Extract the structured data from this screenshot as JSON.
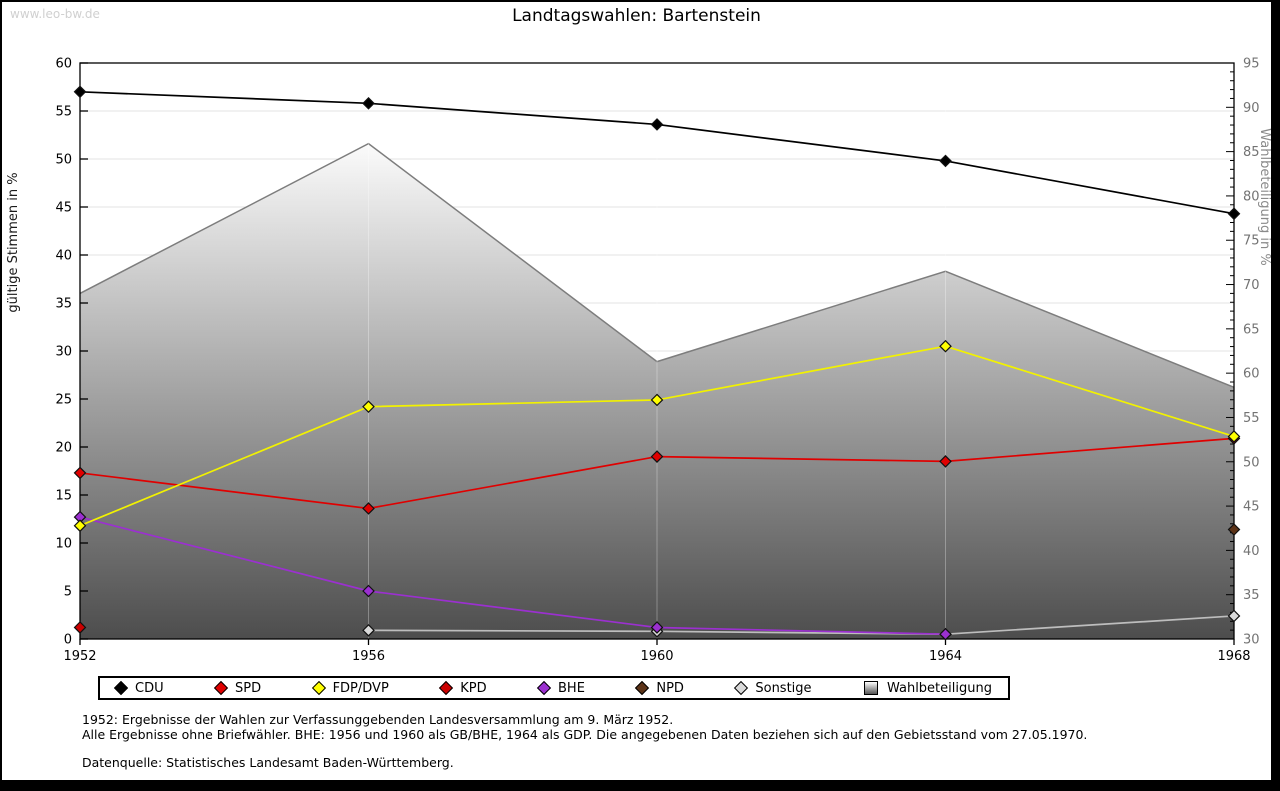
{
  "page": {
    "watermark": "www.leo-bw.de",
    "title": "Landtagswahlen: Bartenstein",
    "footnotes": {
      "line1": "1952: Ergebnisse der Wahlen zur Verfassunggebenden Landesversammlung am 9. März 1952.",
      "line2": "Alle Ergebnisse ohne Briefwähler. BHE: 1956 und 1960 als GB/BHE, 1964 als GDP. Die angegebenen Daten beziehen sich auf den Gebietsstand vom 27.05.1970.",
      "source": "Datenquelle: Statistisches Landesamt Baden-Württemberg."
    }
  },
  "chart_data": {
    "type": "line",
    "title": "Landtagswahlen: Bartenstein",
    "categories": [
      "1952",
      "1956",
      "1960",
      "1964",
      "1968"
    ],
    "ylabel_left": "gültige Stimmen in %",
    "ylabel_right": "Wahlbeteiligung in %",
    "ylim_left": [
      0,
      60
    ],
    "ylim_right": [
      30,
      95
    ],
    "ytick_step": 5,
    "grid": true,
    "legend_position": "bottom",
    "colors": {
      "gridline": "#e3e3e3",
      "frame": "#000000",
      "right_axis_text": "#737373",
      "area_edge": "#7d7d7d",
      "area_fill_top": "#ffffff",
      "area_fill_bottom": "#4d4d4d"
    },
    "series": [
      {
        "name": "CDU",
        "type": "line",
        "axis": "left",
        "color": "#000000",
        "marker_fill": "#000000",
        "values": [
          57.0,
          55.8,
          53.6,
          49.8,
          44.3
        ]
      },
      {
        "name": "SPD",
        "type": "line",
        "axis": "left",
        "color": "#e00000",
        "marker_fill": "#e00000",
        "values": [
          17.3,
          13.6,
          19.0,
          18.5,
          20.9
        ]
      },
      {
        "name": "FDP/DVP",
        "type": "line",
        "axis": "left",
        "color": "#f2f200",
        "marker_fill": "#ffff00",
        "values": [
          11.8,
          24.2,
          24.9,
          30.5,
          21.1
        ]
      },
      {
        "name": "KPD",
        "type": "line",
        "axis": "left",
        "color": "#c00000",
        "marker_fill": "#cc0000",
        "values": [
          1.2,
          null,
          null,
          null,
          null
        ]
      },
      {
        "name": "BHE",
        "type": "line",
        "axis": "left",
        "color": "#9b30d0",
        "marker_fill": "#9b30d0",
        "values": [
          12.7,
          5.0,
          1.2,
          0.5,
          null
        ]
      },
      {
        "name": "NPD",
        "type": "line",
        "axis": "left",
        "color": "#5c3317",
        "marker_fill": "#5c3317",
        "values": [
          null,
          null,
          null,
          null,
          11.4
        ]
      },
      {
        "name": "Sonstige",
        "type": "line",
        "axis": "left",
        "color": "#bdbdbd",
        "marker_fill": "#d9d9d9",
        "values": [
          null,
          0.9,
          0.8,
          0.5,
          2.4
        ]
      },
      {
        "name": "Wahlbeteiligung",
        "type": "area",
        "axis": "right",
        "color": "#888888",
        "values": [
          69.0,
          85.9,
          61.3,
          71.5,
          58.4
        ]
      }
    ]
  }
}
